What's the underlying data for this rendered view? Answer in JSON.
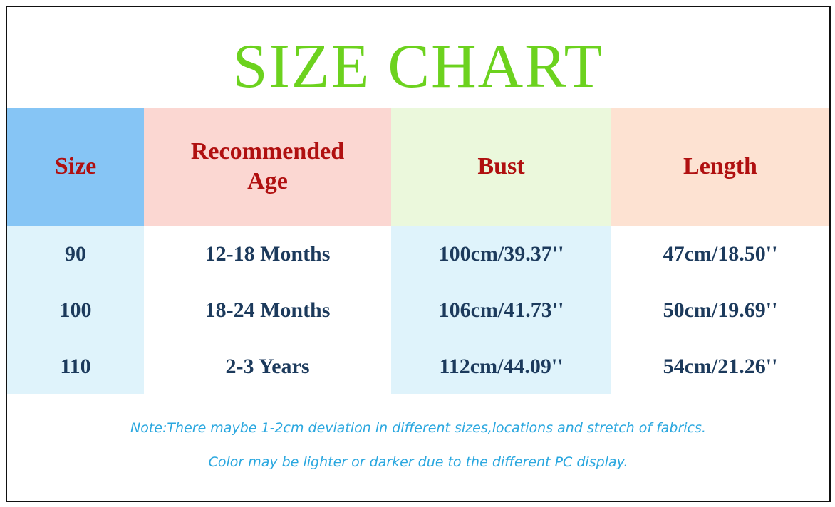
{
  "title": "SIZE CHART",
  "colors": {
    "title": "#6cd21e",
    "header_text": "#b01010",
    "body_text": "#1c3a5c",
    "note_text": "#2aa7df",
    "header_bg": [
      "#86c5f5",
      "#fbd7d2",
      "#ebf8dc",
      "#fde2d2"
    ],
    "row_bg_alt": "#dff3fb"
  },
  "headers": [
    "Size",
    "Recommended Age",
    "Bust",
    "Length"
  ],
  "rows": [
    [
      "90",
      "12-18 Months",
      "100cm/39.37''",
      "47cm/18.50''"
    ],
    [
      "100",
      "18-24 Months",
      "106cm/41.73''",
      "50cm/19.69''"
    ],
    [
      "110",
      "2-3 Years",
      "112cm/44.09''",
      "54cm/21.26''"
    ]
  ],
  "notes": [
    "Note:There maybe 1-2cm deviation in different sizes,locations and stretch of fabrics.",
    "Color may be lighter or darker due to the different PC display."
  ]
}
